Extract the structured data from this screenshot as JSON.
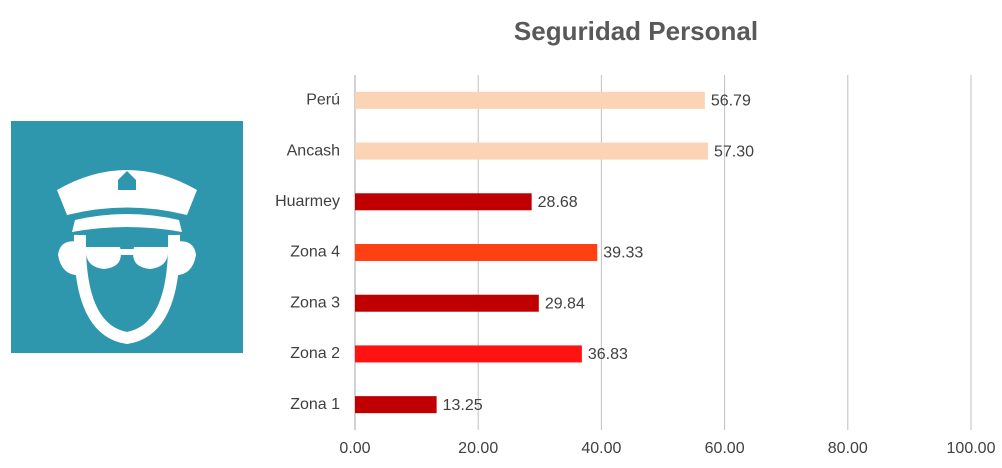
{
  "chart_data": {
    "type": "bar",
    "orientation": "horizontal",
    "title": "Seguridad Personal",
    "categories": [
      "Perú",
      "Ancash",
      "Huarmey",
      "Zona 4",
      "Zona 3",
      "Zona 2",
      "Zona 1"
    ],
    "values": [
      56.79,
      57.3,
      28.68,
      39.33,
      29.84,
      36.83,
      13.25
    ],
    "value_labels": [
      "56.79",
      "57.30",
      "28.68",
      "39.33",
      "29.84",
      "36.83",
      "13.25"
    ],
    "colors": [
      "#fbd3b5",
      "#fbd3b5",
      "#c00000",
      "#ff4012",
      "#c00000",
      "#ff1212",
      "#c00000"
    ],
    "xlim": [
      0,
      100
    ],
    "xticks": [
      {
        "value": 0,
        "label": "0.00"
      },
      {
        "value": 20,
        "label": "20.00"
      },
      {
        "value": 40,
        "label": "40.00"
      },
      {
        "value": 60,
        "label": "60.00"
      },
      {
        "value": 80,
        "label": "80.00"
      },
      {
        "value": 100,
        "label": "100.00"
      }
    ],
    "grid": true
  }
}
